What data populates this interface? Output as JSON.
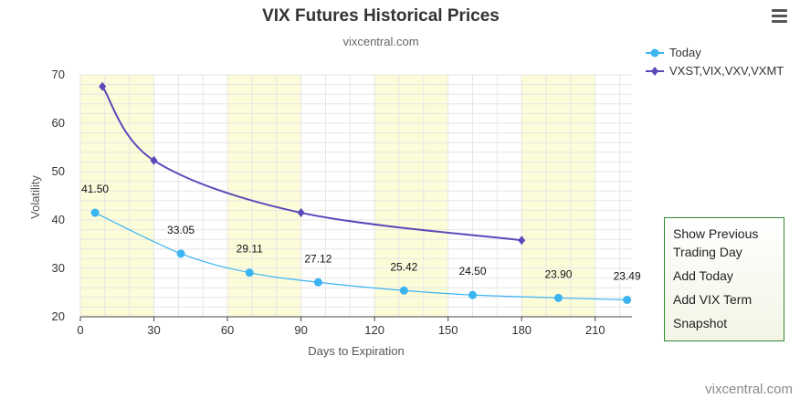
{
  "chart_data": {
    "type": "line",
    "title": "VIX Futures Historical Prices",
    "subtitle": "vixcentral.com",
    "xlabel": "Days to Expiration",
    "ylabel": "Volatility",
    "xlim": [
      0,
      225
    ],
    "ylim": [
      20,
      70
    ],
    "xticks": [
      0,
      30,
      60,
      90,
      120,
      150,
      180,
      210
    ],
    "yticks": [
      20,
      30,
      40,
      50,
      60,
      70
    ],
    "shaded_bands": [
      [
        0,
        30
      ],
      [
        60,
        90
      ],
      [
        120,
        150
      ],
      [
        180,
        210
      ]
    ],
    "band_color": "#fcfcd9",
    "grid": true,
    "legend_position": "top-right",
    "series": [
      {
        "name": "Today",
        "color": "#3bb4f2",
        "marker": "circle",
        "x": [
          6,
          41,
          69,
          97,
          132,
          160,
          195,
          223
        ],
        "y": [
          41.5,
          33.05,
          29.11,
          27.12,
          25.42,
          24.5,
          23.9,
          23.49
        ],
        "labels": [
          "41.50",
          "33.05",
          "29.11",
          "27.12",
          "25.42",
          "24.50",
          "23.90",
          "23.49"
        ]
      },
      {
        "name": "VXST,VIX,VXV,VXMT",
        "color": "#5a49b8",
        "marker": "diamond",
        "x": [
          9,
          30,
          90,
          180
        ],
        "y": [
          67.6,
          52.3,
          41.5,
          35.8
        ]
      }
    ],
    "credit": "vixcentral.com"
  },
  "panel": {
    "show_previous_line1": "Show Previous",
    "show_previous_line2": "Trading Day",
    "add_today": "Add Today",
    "add_vix_term": "Add VIX Term",
    "snapshot": "Snapshot"
  }
}
